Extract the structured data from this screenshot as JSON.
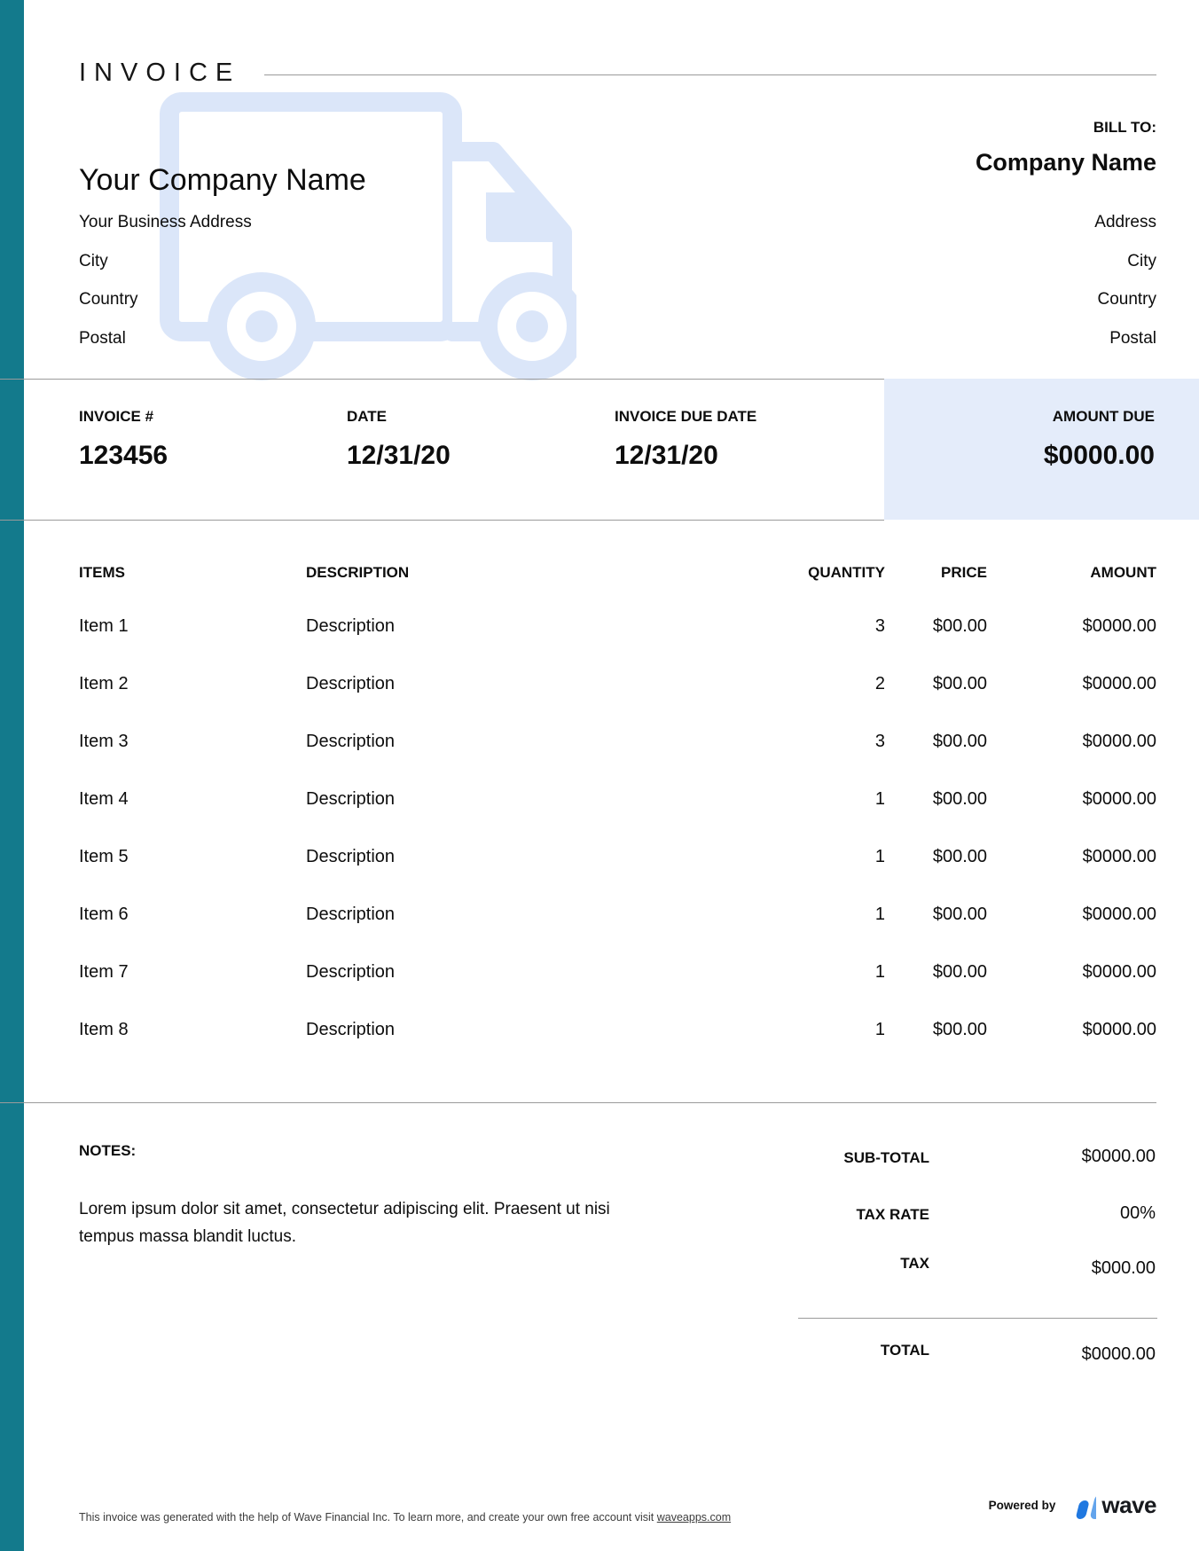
{
  "colors": {
    "accent_teal": "#137a8c",
    "watermark_blue": "#dbe6f9",
    "amount_box_bg": "#e4ecfa",
    "rule_gray": "#9b9b9b"
  },
  "header": {
    "title": "INVOICE"
  },
  "company": {
    "name": "Your Company Name",
    "address": "Your Business Address",
    "city": "City",
    "country": "Country",
    "postal": "Postal"
  },
  "bill_to": {
    "label": "BILL TO:",
    "name": "Company Name",
    "address": "Address",
    "city": "City",
    "country": "Country",
    "postal": "Postal"
  },
  "invoice_meta": {
    "invoice_number_label": "INVOICE #",
    "invoice_number": "123456",
    "date_label": "DATE",
    "date": "12/31/20",
    "due_date_label": "INVOICE DUE DATE",
    "due_date": "12/31/20",
    "amount_due_label": "AMOUNT DUE",
    "amount_due": "$0000.00"
  },
  "table": {
    "headers": {
      "items": "ITEMS",
      "description": "DESCRIPTION",
      "quantity": "QUANTITY",
      "price": "PRICE",
      "amount": "AMOUNT"
    },
    "rows": [
      {
        "item": "Item 1",
        "description": "Description",
        "quantity": "3",
        "price": "$00.00",
        "amount": "$0000.00"
      },
      {
        "item": "Item 2",
        "description": "Description",
        "quantity": "2",
        "price": "$00.00",
        "amount": "$0000.00"
      },
      {
        "item": "Item 3",
        "description": "Description",
        "quantity": "3",
        "price": "$00.00",
        "amount": "$0000.00"
      },
      {
        "item": "Item 4",
        "description": "Description",
        "quantity": "1",
        "price": "$00.00",
        "amount": "$0000.00"
      },
      {
        "item": "Item 5",
        "description": "Description",
        "quantity": "1",
        "price": "$00.00",
        "amount": "$0000.00"
      },
      {
        "item": "Item 6",
        "description": "Description",
        "quantity": "1",
        "price": "$00.00",
        "amount": "$0000.00"
      },
      {
        "item": "Item 7",
        "description": "Description",
        "quantity": "1",
        "price": "$00.00",
        "amount": "$0000.00"
      },
      {
        "item": "Item 8",
        "description": "Description",
        "quantity": "1",
        "price": "$00.00",
        "amount": "$0000.00"
      }
    ]
  },
  "notes": {
    "label": "NOTES:",
    "text": "Lorem ipsum dolor sit amet, consectetur adipiscing elit. Praesent ut nisi tempus massa blandit luctus."
  },
  "totals": {
    "subtotal_label": "SUB-TOTAL",
    "subtotal": "$0000.00",
    "tax_rate_label": "TAX RATE",
    "tax_rate": "00%",
    "tax_label": "TAX",
    "tax": "$000.00",
    "total_label": "TOTAL",
    "total": "$0000.00"
  },
  "footer": {
    "disclaimer_prefix": "This invoice was generated with the help of Wave Financial Inc. To learn more, and create your own free account visit ",
    "link": "waveapps.com",
    "powered_by": "Powered by",
    "brand": "wave"
  }
}
